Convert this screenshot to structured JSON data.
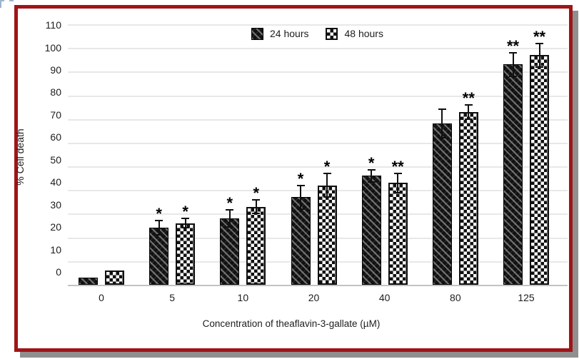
{
  "frame": {
    "border_color": "#a01418",
    "shadow_color": "#8f8f8f",
    "background": "#ffffff",
    "artifact_dash_color": "#9db3cc"
  },
  "chart_data": {
    "type": "bar",
    "title": "",
    "xlabel": "Concentration of theaflavin-3-gallate (µM)",
    "ylabel": "% Cell death",
    "categories": [
      "0",
      "5",
      "10",
      "20",
      "40",
      "80",
      "125"
    ],
    "series": [
      {
        "name": "24 hours",
        "pattern": "diagonal-hatch",
        "values": [
          3,
          24,
          28,
          37,
          46,
          68,
          93
        ],
        "errors": [
          0,
          3,
          3.5,
          5,
          2.5,
          6,
          5
        ],
        "significance": [
          "",
          "*",
          "*",
          "*",
          "*",
          "",
          "**"
        ]
      },
      {
        "name": "48 hours",
        "pattern": "checkerboard",
        "values": [
          6,
          26,
          33,
          42,
          43,
          73,
          97
        ],
        "errors": [
          0,
          2,
          3,
          5,
          4,
          3,
          5
        ],
        "significance": [
          "",
          "*",
          "*",
          "*",
          "**",
          "**",
          "**"
        ]
      }
    ],
    "ylim": [
      0,
      110
    ],
    "yticks": [
      0,
      10,
      20,
      30,
      40,
      50,
      60,
      70,
      80,
      90,
      100,
      110
    ],
    "grid": true,
    "legend_position": "top-center",
    "bar_colors": {
      "series_24h": "#121212",
      "series_48h": "#101010"
    },
    "gridline_color": "#e8e8e8",
    "axis_line_color": "#c2c2c2",
    "text_color": "#1d1d1d"
  }
}
